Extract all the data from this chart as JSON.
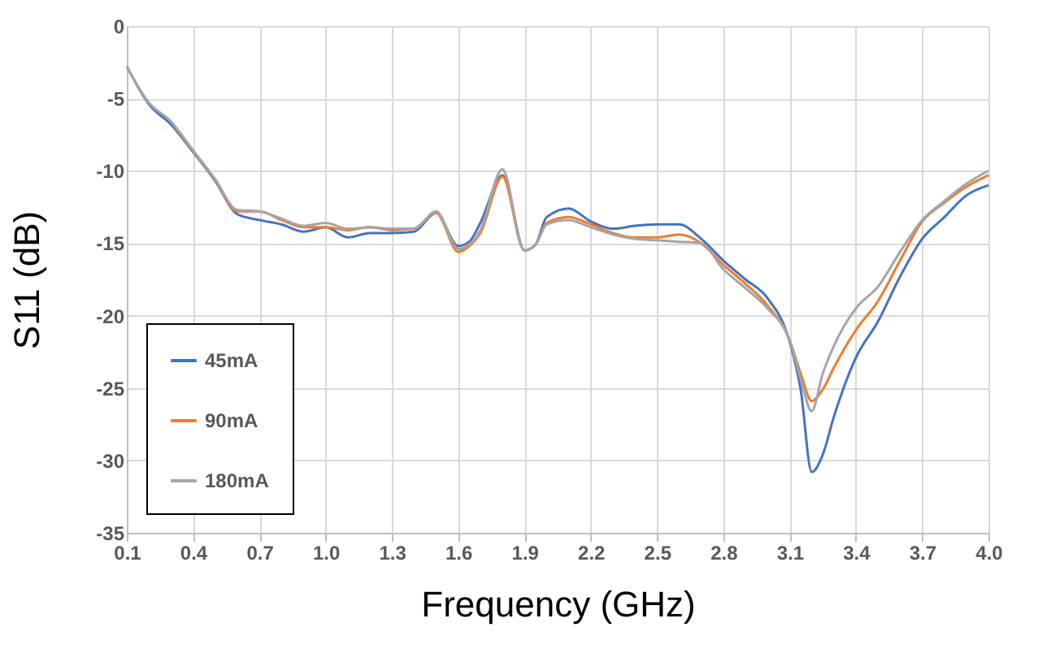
{
  "chart_data": {
    "type": "line",
    "xlabel": "Frequency (GHz)",
    "ylabel": "S11 (dB)",
    "x": [
      0.1,
      0.2,
      0.3,
      0.4,
      0.5,
      0.6,
      0.7,
      0.8,
      0.9,
      1.0,
      1.1,
      1.2,
      1.3,
      1.4,
      1.5,
      1.6,
      1.65,
      1.7,
      1.8,
      1.9,
      1.95,
      2.0,
      2.1,
      2.2,
      2.3,
      2.4,
      2.5,
      2.6,
      2.7,
      2.8,
      2.9,
      3.0,
      3.1,
      3.15,
      3.2,
      3.25,
      3.3,
      3.4,
      3.5,
      3.6,
      3.7,
      3.8,
      3.9,
      4.0
    ],
    "series": [
      {
        "name": "45mA",
        "color": "#4472c4",
        "values": [
          -2.8,
          -5.4,
          -6.8,
          -8.7,
          -10.7,
          -13.0,
          -13.4,
          -13.7,
          -14.2,
          -13.9,
          -14.6,
          -14.3,
          -14.3,
          -14.2,
          -12.9,
          -15.2,
          -14.9,
          -13.6,
          -10.3,
          -15.5,
          -15.1,
          -13.2,
          -12.6,
          -13.5,
          -14.0,
          -13.8,
          -13.7,
          -13.7,
          -14.7,
          -16.2,
          -17.5,
          -18.8,
          -21.8,
          -25.1,
          -30.8,
          -29.6,
          -27.0,
          -22.9,
          -20.4,
          -17.3,
          -14.7,
          -13.2,
          -11.7,
          -11.0
        ]
      },
      {
        "name": "90mA",
        "color": "#ed7d31",
        "values": [
          null,
          null,
          -6.6,
          -8.6,
          -10.6,
          -12.8,
          -12.8,
          -13.4,
          -13.9,
          -13.9,
          -14.1,
          -13.9,
          -14.1,
          -14.0,
          -12.9,
          -15.6,
          -15.2,
          -14.3,
          -10.4,
          -15.5,
          -15.1,
          -13.6,
          -13.2,
          -13.7,
          -14.3,
          -14.6,
          -14.6,
          -14.4,
          -15.0,
          -16.5,
          -17.8,
          -19.3,
          -21.7,
          -24.0,
          -25.9,
          -25.1,
          -23.6,
          -21.0,
          -19.0,
          -16.2,
          -13.5,
          -12.2,
          -11.1,
          -10.3
        ]
      },
      {
        "name": "180mA",
        "color": "#a5a5a5",
        "values": [
          -2.8,
          -5.3,
          -6.6,
          -8.6,
          -10.6,
          -12.7,
          -12.8,
          -13.3,
          -13.8,
          -13.6,
          -14.0,
          -13.9,
          -14.0,
          -14.0,
          -12.8,
          -15.4,
          -15.1,
          -14.1,
          -9.9,
          -15.5,
          -15.1,
          -13.7,
          -13.4,
          -13.9,
          -14.4,
          -14.7,
          -14.8,
          -14.9,
          -15.0,
          -16.8,
          -18.1,
          -19.5,
          -21.7,
          -24.4,
          -26.6,
          -24.0,
          -22.1,
          -19.5,
          -18.0,
          -15.6,
          -13.4,
          -12.1,
          -10.9,
          -10.0
        ]
      }
    ],
    "xlim": [
      0.1,
      4.0
    ],
    "xticks": [
      0.1,
      0.4,
      0.7,
      {
        "value": 1.0,
        "label": "1.0"
      },
      1.3,
      1.6,
      1.9,
      2.2,
      2.5,
      2.8,
      3.1,
      3.4,
      3.7,
      {
        "value": 4.0,
        "label": "4.0"
      }
    ],
    "ylim": [
      -35,
      0
    ],
    "yticks": [
      -35,
      -30,
      -25,
      -20,
      -15,
      -10,
      -5,
      0
    ],
    "grid": true,
    "legend": "bottom left",
    "marker": "none",
    "line_style": "solid"
  }
}
